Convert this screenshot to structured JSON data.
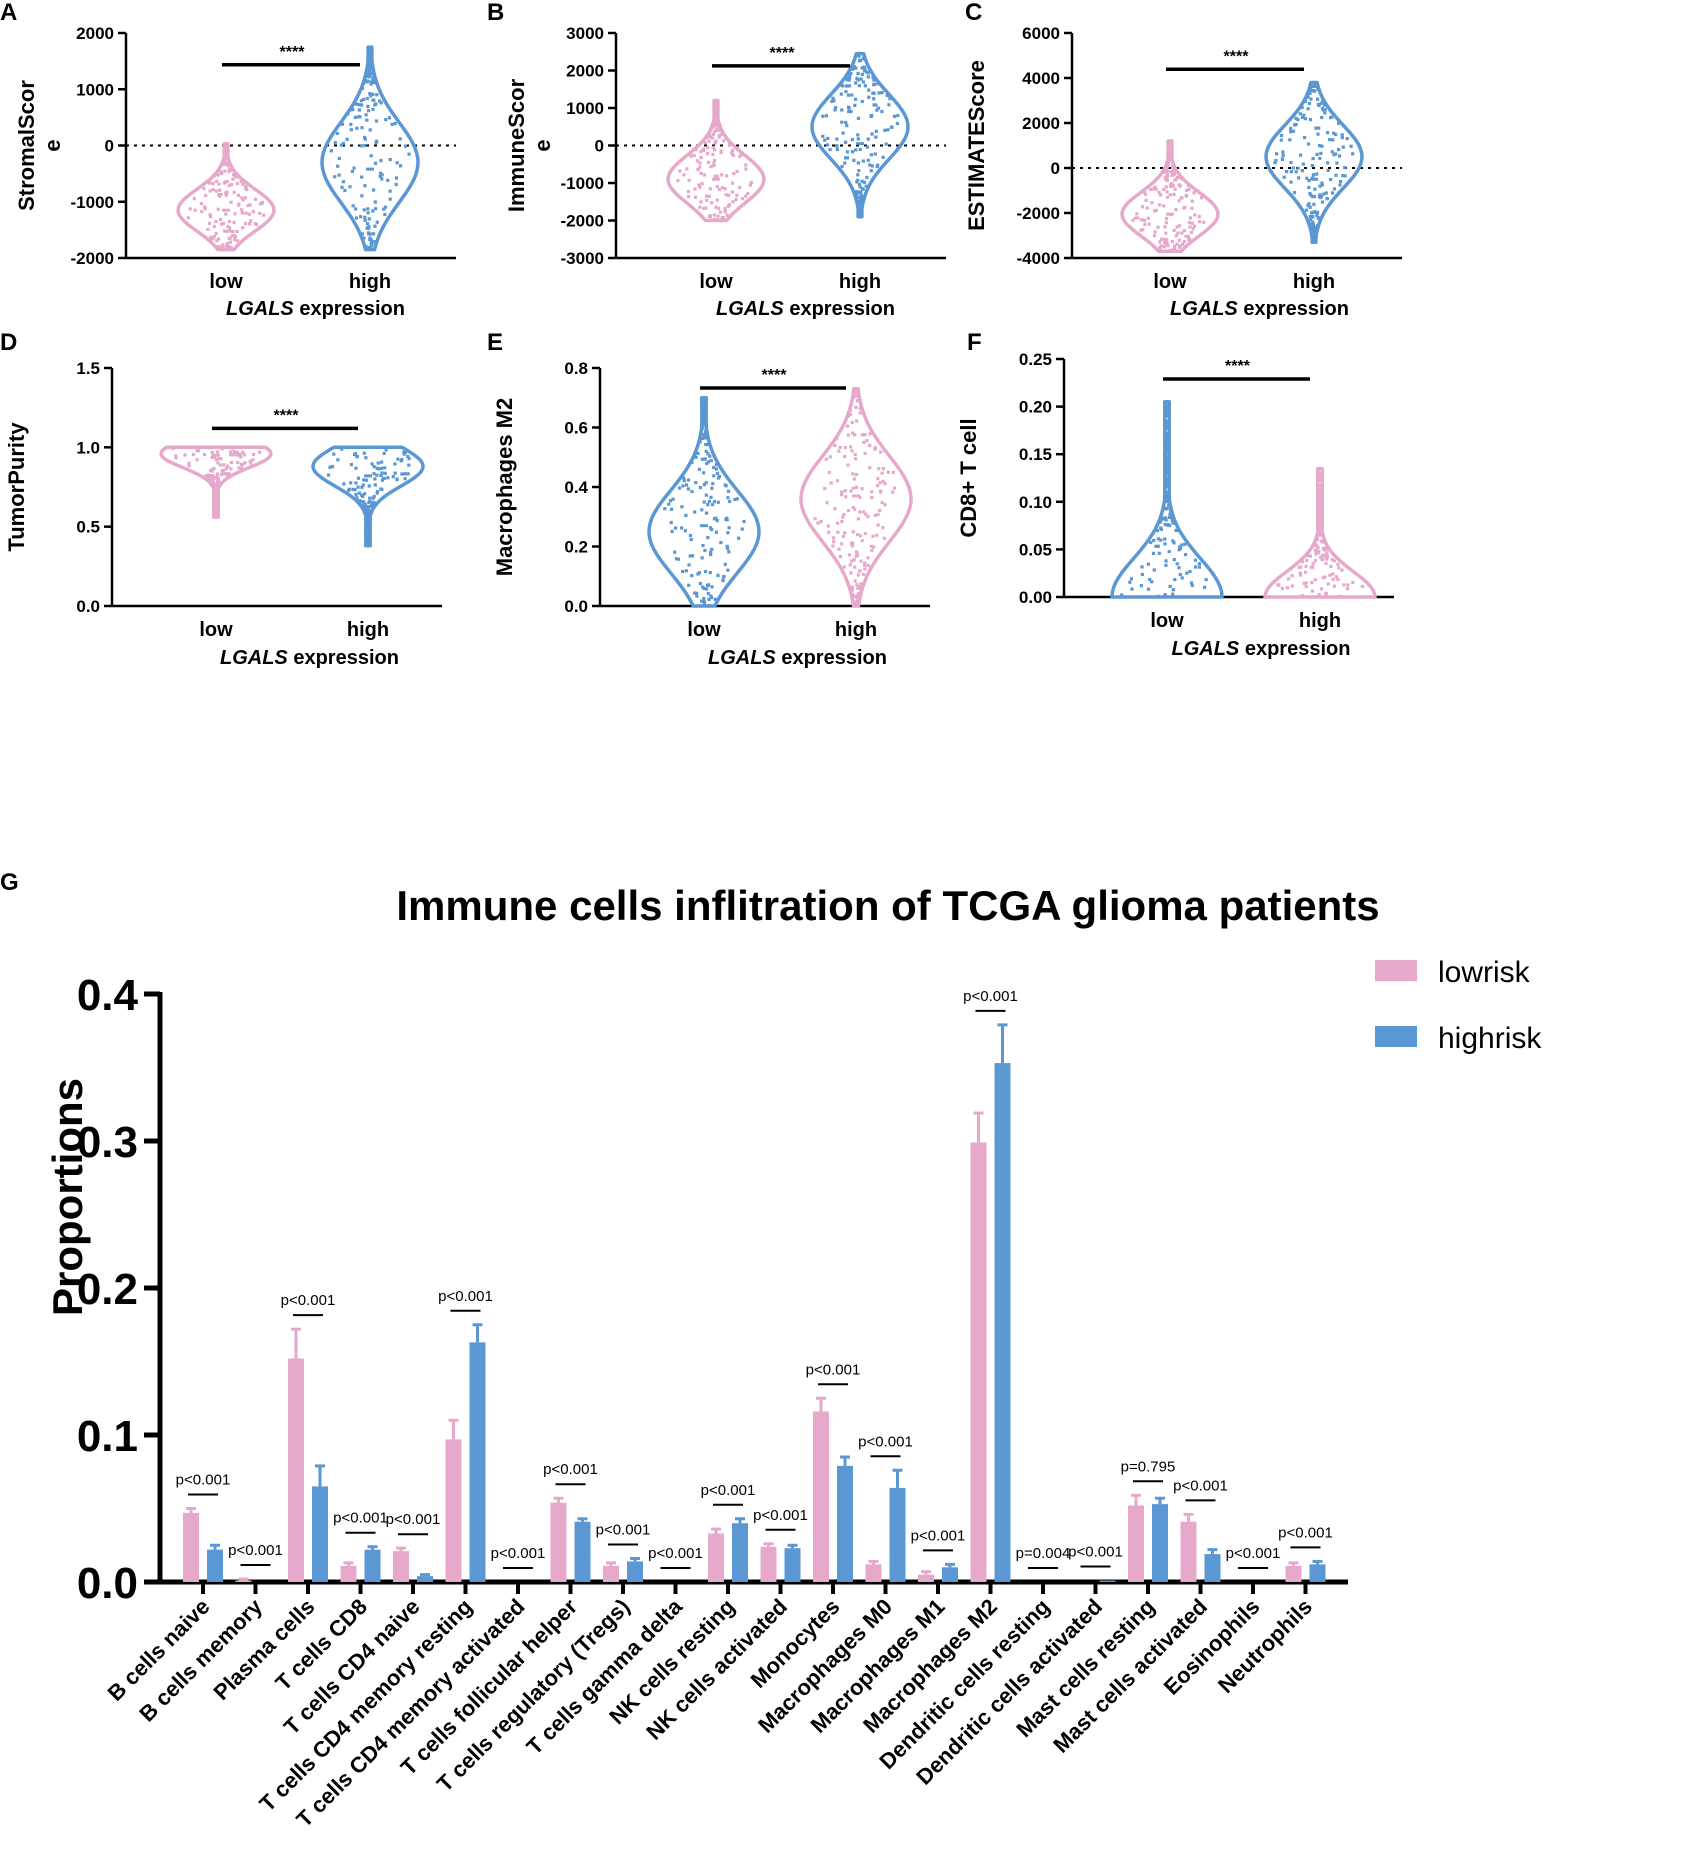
{
  "colors": {
    "low": "#e6a9cb",
    "high": "#5b97d3",
    "ref": "#000000"
  },
  "chart_data": [
    {
      "panel": "A",
      "type": "violin",
      "ylabel": [
        "StromalScor",
        "e"
      ],
      "ylim": [
        -2000,
        2000
      ],
      "yticks": [
        -2000,
        -1000,
        0,
        1000,
        2000
      ],
      "yticklabels": [
        "-2000",
        "-1000",
        "0",
        "1000",
        "2000"
      ],
      "categories": [
        "low",
        "high"
      ],
      "xlabel_italic": "LGALS",
      "xlabel_rest": " expression",
      "refline": 0,
      "sig": "****",
      "sig_y": 1720,
      "colors": [
        "low",
        "high"
      ],
      "groups": [
        {
          "min": -1850,
          "max": 30,
          "median": -1150,
          "spread": 0.85,
          "center": -1150
        },
        {
          "min": -1850,
          "max": 1750,
          "median": -420,
          "spread": 0.85,
          "center": -300
        }
      ]
    },
    {
      "panel": "B",
      "type": "violin",
      "ylabel": [
        "ImmuneScor",
        "e"
      ],
      "ylim": [
        -3000,
        3000
      ],
      "yticks": [
        -3000,
        -2000,
        -1000,
        0,
        1000,
        2000,
        3000
      ],
      "yticklabels": [
        "-3000",
        "-2000",
        "-1000",
        "0",
        "1000",
        "2000",
        "3000"
      ],
      "categories": [
        "low",
        "high"
      ],
      "xlabel_italic": "LGALS",
      "xlabel_rest": " expression",
      "refline": 0,
      "sig": "****",
      "sig_y": 2550,
      "colors": [
        "low",
        "high"
      ],
      "groups": [
        {
          "min": -2000,
          "max": 1200,
          "median": -900,
          "spread": 0.85,
          "center": -900
        },
        {
          "min": -1900,
          "max": 2450,
          "median": 50,
          "spread": 0.85,
          "center": 500
        }
      ]
    },
    {
      "panel": "C",
      "type": "violin",
      "ylabel": [
        "ESTIMATEScore"
      ],
      "ylim": [
        -4000,
        6000
      ],
      "yticks": [
        -4000,
        -2000,
        0,
        2000,
        4000,
        6000
      ],
      "yticklabels": [
        "-4000",
        "-2000",
        "0",
        "2000",
        "4000",
        "6000"
      ],
      "categories": [
        "low",
        "high"
      ],
      "xlabel_italic": "LGALS",
      "xlabel_rest": " expression",
      "refline": 0,
      "sig": "****",
      "sig_y": 5100,
      "colors": [
        "low",
        "high"
      ],
      "groups": [
        {
          "min": -3700,
          "max": 1200,
          "median": -2050,
          "spread": 0.85,
          "center": -2050
        },
        {
          "min": -3300,
          "max": 3800,
          "median": -500,
          "spread": 0.85,
          "center": 500
        }
      ]
    },
    {
      "panel": "D",
      "type": "violin",
      "ylabel": [
        "TumorPurity"
      ],
      "ylim": [
        0,
        1.5
      ],
      "yticks": [
        0,
        0.5,
        1,
        1.5
      ],
      "yticklabels": [
        "0.0",
        "0.5",
        "1.0",
        "1.5"
      ],
      "categories": [
        "low",
        "high"
      ],
      "xlabel_italic": "LGALS",
      "xlabel_rest": " expression",
      "refline": null,
      "sig": "****",
      "sig_y": 1.22,
      "colors": [
        "low",
        "high"
      ],
      "groups": [
        {
          "min": 0.56,
          "max": 1.0,
          "median": 0.95,
          "spread": 0.85,
          "center": 0.96
        },
        {
          "min": 0.38,
          "max": 1.0,
          "median": 0.82,
          "spread": 0.85,
          "center": 0.88
        }
      ]
    },
    {
      "panel": "E",
      "type": "violin",
      "ylabel": [
        "Macrophages M2"
      ],
      "ylim": [
        0,
        0.8
      ],
      "yticks": [
        0,
        0.2,
        0.4,
        0.6,
        0.8
      ],
      "yticklabels": [
        "0.0",
        "0.2",
        "0.4",
        "0.6",
        "0.8"
      ],
      "categories": [
        "low",
        "high"
      ],
      "xlabel_italic": "LGALS",
      "xlabel_rest": " expression",
      "refline": null,
      "sig": "****",
      "sig_y": 0.81,
      "colors": [
        "high",
        "low"
      ],
      "groups": [
        {
          "min": 0.0,
          "max": 0.7,
          "median": 0.27,
          "spread": 0.85,
          "center": 0.25
        },
        {
          "min": 0.0,
          "max": 0.73,
          "median": 0.37,
          "spread": 0.85,
          "center": 0.36
        }
      ]
    },
    {
      "panel": "F",
      "type": "violin",
      "ylabel": [
        "CD8+ T cell"
      ],
      "ylim": [
        0,
        0.25
      ],
      "yticks": [
        0,
        0.05,
        0.1,
        0.15,
        0.2,
        0.25
      ],
      "yticklabels": [
        "0.00",
        "0.05",
        "0.10",
        "0.15",
        "0.20",
        "0.25"
      ],
      "categories": [
        "low",
        "high"
      ],
      "xlabel_italic": "LGALS",
      "xlabel_rest": " expression",
      "refline": null,
      "sig": "****",
      "sig_y": 0.255,
      "colors": [
        "high",
        "low"
      ],
      "groups": [
        {
          "min": 0.0,
          "max": 0.205,
          "median": 0.0,
          "spread": 0.85,
          "center": 0.0
        },
        {
          "min": 0.0,
          "max": 0.135,
          "median": 0.0,
          "spread": 0.85,
          "center": 0.0
        }
      ]
    },
    {
      "panel": "G",
      "type": "bar",
      "title": "Immune cells inflitration of TCGA glioma patients",
      "ylabel": "Proportions",
      "ylim": [
        0,
        0.4
      ],
      "yticks": [
        0,
        0.1,
        0.2,
        0.3,
        0.4
      ],
      "yticklabels": [
        "0.0",
        "0.1",
        "0.2",
        "0.3",
        "0.4"
      ],
      "categories": [
        "B cells naive",
        "B cells memory",
        "Plasma cells",
        "T cells CD8",
        "T cells CD4 naive",
        "T cells CD4 memory resting",
        "T cells CD4 memory activated",
        "T cells follicular helper",
        "T cells regulatory (Tregs)",
        "T cells gamma delta",
        "NK cells resting",
        "NK cells activated",
        "Monocytes",
        "Macrophages M0",
        "Macrophages M1",
        "Macrophages M2",
        "Dendritic cells resting",
        "Dendritic cells activated",
        "Mast cells resting",
        "Mast cells activated",
        "Eosinophils",
        "Neutrophils"
      ],
      "series": [
        {
          "name": "lowrisk",
          "color": "low",
          "values": [
            0.047,
            0.001,
            0.152,
            0.011,
            0.021,
            0.097,
            0.0,
            0.054,
            0.011,
            0.0,
            0.033,
            0.024,
            0.116,
            0.012,
            0.005,
            0.299,
            0.0,
            0.0,
            0.052,
            0.041,
            0.0,
            0.011
          ],
          "err": [
            0.003,
            0.001,
            0.02,
            0.002,
            0.002,
            0.013,
            0.0,
            0.003,
            0.002,
            0.0,
            0.003,
            0.002,
            0.009,
            0.002,
            0.002,
            0.02,
            0.0,
            0.0,
            0.007,
            0.005,
            0.0,
            0.002
          ]
        },
        {
          "name": "highrisk",
          "color": "high",
          "values": [
            0.022,
            0.0,
            0.065,
            0.022,
            0.004,
            0.163,
            0.0,
            0.041,
            0.014,
            0.0,
            0.04,
            0.023,
            0.079,
            0.064,
            0.01,
            0.353,
            0.0,
            0.001,
            0.053,
            0.019,
            0.0,
            0.012
          ],
          "err": [
            0.003,
            0.0,
            0.014,
            0.002,
            0.001,
            0.012,
            0.0,
            0.002,
            0.002,
            0.0,
            0.003,
            0.002,
            0.006,
            0.012,
            0.002,
            0.026,
            0.0,
            0.0,
            0.004,
            0.003,
            0.0,
            0.002
          ]
        }
      ],
      "pvalues": [
        "p<0.001",
        "p<0.001",
        "p<0.001",
        "p<0.001",
        "p<0.001",
        "p<0.001",
        "p<0.001",
        "p<0.001",
        "p<0.001",
        "p<0.001",
        "p<0.001",
        "p<0.001",
        "p<0.001",
        "p<0.001",
        "p<0.001",
        "p<0.001",
        "p=0.004",
        "p<0.001",
        "p=0.795",
        "p<0.001",
        "p<0.001",
        "p<0.001"
      ],
      "legend": {
        "position": "top-right"
      }
    }
  ]
}
